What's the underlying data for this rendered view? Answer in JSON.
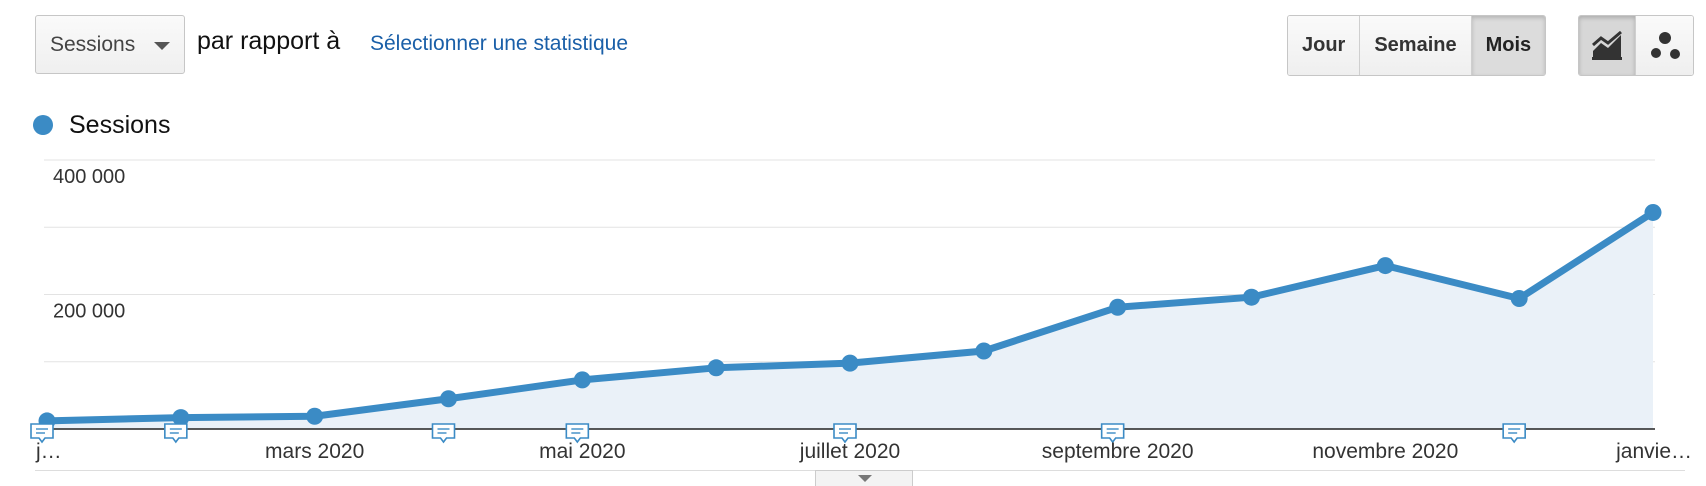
{
  "toolbar": {
    "metric": "Sessions",
    "compare_text": "par rapport à",
    "stat_link": "Sélectionner une statistique",
    "periods": [
      "Jour",
      "Semaine",
      "Mois"
    ],
    "active_period": "Mois",
    "view_icons": [
      "line-chart-icon",
      "motion-chart-icon"
    ]
  },
  "colors": {
    "series": "#3b8bc5",
    "area": "#eaf1f8",
    "link": "#1a5fa8"
  },
  "chart_data": {
    "type": "area",
    "series": [
      {
        "name": "Sessions",
        "values": [
          12000,
          17000,
          19000,
          45000,
          73000,
          91000,
          98000,
          116000,
          181000,
          196000,
          243000,
          194000,
          322000
        ]
      }
    ],
    "x": [
      "2020-01",
      "2020-02",
      "2020-03",
      "2020-04",
      "2020-05",
      "2020-06",
      "2020-07",
      "2020-08",
      "2020-09",
      "2020-10",
      "2020-11",
      "2020-12",
      "2021-01"
    ],
    "x_tick_labels": [
      {
        "index": 0,
        "label": "j…"
      },
      {
        "index": 2,
        "label": "mars 2020"
      },
      {
        "index": 4,
        "label": "mai 2020"
      },
      {
        "index": 6,
        "label": "juillet 2020"
      },
      {
        "index": 8,
        "label": "septembre 2020"
      },
      {
        "index": 10,
        "label": "novembre 2020"
      },
      {
        "index": 12,
        "label": "janvie…"
      }
    ],
    "y_ticks": [
      {
        "value": 400000,
        "label": "400 000"
      },
      {
        "value": 200000,
        "label": "200 000"
      }
    ],
    "ylim": [
      0,
      400000
    ],
    "grid": true,
    "annotation_markers_at": [
      0,
      1,
      3,
      4,
      6,
      8,
      11
    ],
    "title": "",
    "xlabel": "",
    "ylabel": ""
  }
}
